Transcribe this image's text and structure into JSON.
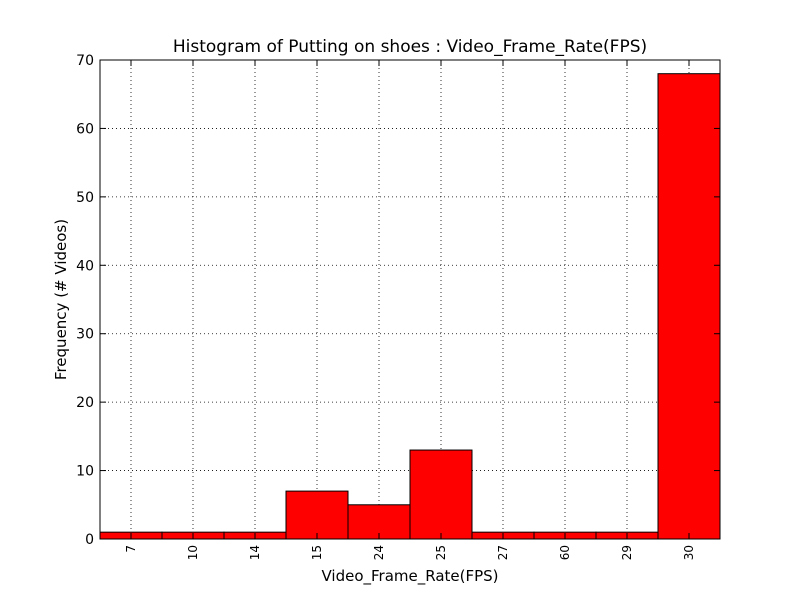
{
  "chart_data": {
    "type": "bar",
    "title": "Histogram of Putting on shoes : Video_Frame_Rate(FPS)",
    "xlabel": "Video_Frame_Rate(FPS)",
    "ylabel": "Frequency (# Videos)",
    "categories": [
      "7",
      "10",
      "14",
      "15",
      "24",
      "25",
      "27",
      "60",
      "29",
      "30"
    ],
    "values": [
      1,
      1,
      1,
      7,
      5,
      13,
      1,
      1,
      1,
      68
    ],
    "ylim": [
      0,
      70
    ],
    "yticks": [
      0,
      10,
      20,
      30,
      40,
      50,
      60,
      70
    ],
    "grid": true,
    "bar_color": "#ff0000",
    "edge_color": "#000000"
  }
}
